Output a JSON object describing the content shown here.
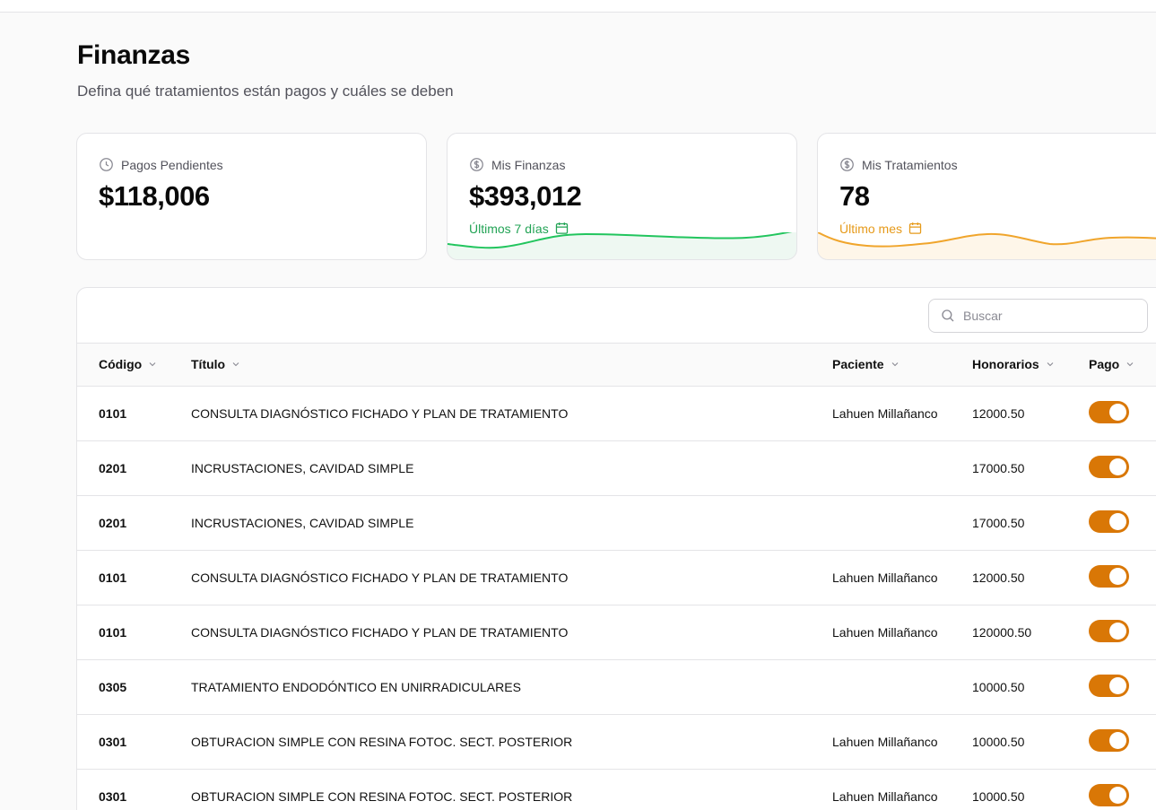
{
  "header": {
    "title": "Finanzas",
    "subtitle": "Defina qué tratamientos están pagos y cuáles se deben"
  },
  "cards": [
    {
      "label": "Pagos Pendientes",
      "value": "$118,006",
      "icon": "clock-icon"
    },
    {
      "label": "Mis Finanzas",
      "value": "$393,012",
      "icon": "dollar-circle-icon",
      "period": "Últimos 7 días",
      "accent": "#22a355"
    },
    {
      "label": "Mis Tratamientos",
      "value": "78",
      "icon": "dollar-circle-icon",
      "period": "Último mes",
      "accent": "#e69a1a"
    }
  ],
  "search": {
    "placeholder": "Buscar"
  },
  "table": {
    "columns": [
      "Código",
      "Título",
      "Paciente",
      "Honorarios",
      "Pago"
    ],
    "rows": [
      {
        "code": "0101",
        "title": "CONSULTA DIAGNÓSTICO FICHADO Y PLAN DE TRATAMIENTO",
        "patient": "Lahuen Millañanco",
        "fee": "12000.50",
        "paid": true
      },
      {
        "code": "0201",
        "title": "INCRUSTACIONES, CAVIDAD SIMPLE",
        "patient": "",
        "fee": "17000.50",
        "paid": true
      },
      {
        "code": "0201",
        "title": "INCRUSTACIONES, CAVIDAD SIMPLE",
        "patient": "",
        "fee": "17000.50",
        "paid": true
      },
      {
        "code": "0101",
        "title": "CONSULTA DIAGNÓSTICO FICHADO Y PLAN DE TRATAMIENTO",
        "patient": "Lahuen Millañanco",
        "fee": "12000.50",
        "paid": true
      },
      {
        "code": "0101",
        "title": "CONSULTA DIAGNÓSTICO FICHADO Y PLAN DE TRATAMIENTO",
        "patient": "Lahuen Millañanco",
        "fee": "120000.50",
        "paid": true
      },
      {
        "code": "0305",
        "title": "TRATAMIENTO ENDODÓNTICO EN UNIRRADICULARES",
        "patient": "",
        "fee": "10000.50",
        "paid": true
      },
      {
        "code": "0301",
        "title": "OBTURACION SIMPLE CON RESINA FOTOC. SECT. POSTERIOR",
        "patient": "Lahuen Millañanco",
        "fee": "10000.50",
        "paid": true
      },
      {
        "code": "0301",
        "title": "OBTURACION SIMPLE CON RESINA FOTOC. SECT. POSTERIOR",
        "patient": "Lahuen Millañanco",
        "fee": "10000.50",
        "paid": true
      }
    ]
  },
  "colors": {
    "toggle_on": "#d97706",
    "green": "#22a355",
    "orange": "#e69a1a"
  }
}
